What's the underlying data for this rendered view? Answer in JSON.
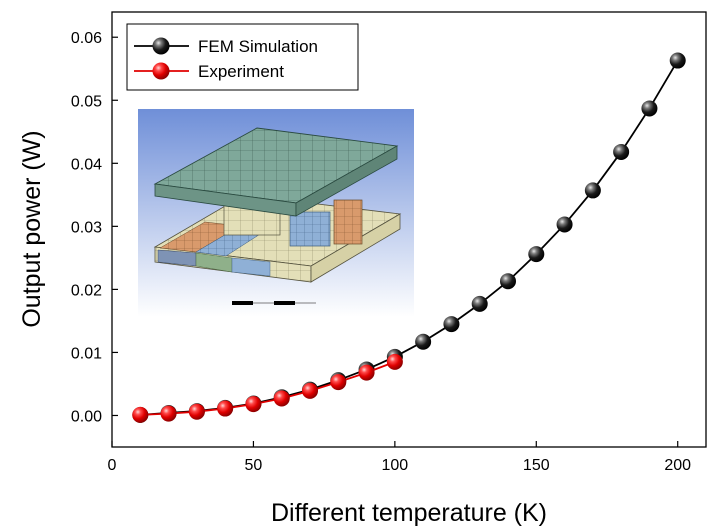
{
  "chart_data": {
    "type": "line",
    "xlabel": "Different temperature (K)",
    "ylabel": "Output power (W)",
    "xlim": [
      0,
      210
    ],
    "ylim": [
      -0.005,
      0.064
    ],
    "xticks": [
      0,
      50,
      100,
      150,
      200
    ],
    "yticks": [
      0.0,
      0.01,
      0.02,
      0.03,
      0.04,
      0.05,
      0.06
    ],
    "ytick_labels": [
      "0.00",
      "0.01",
      "0.02",
      "0.03",
      "0.04",
      "0.05",
      "0.06"
    ],
    "grid": false,
    "legend_position": "top-left",
    "series": [
      {
        "name": "FEM Simulation",
        "color": "#000000",
        "marker": "sphere",
        "x": [
          10,
          20,
          30,
          40,
          50,
          60,
          70,
          80,
          90,
          100,
          110,
          120,
          130,
          140,
          150,
          160,
          170,
          180,
          190,
          200
        ],
        "y": [
          0.0001,
          0.0004,
          0.0007,
          0.0012,
          0.0019,
          0.0029,
          0.0041,
          0.0056,
          0.0073,
          0.0093,
          0.0117,
          0.0145,
          0.0177,
          0.0213,
          0.0256,
          0.0303,
          0.0357,
          0.0418,
          0.0487,
          0.0563
        ]
      },
      {
        "name": "Experiment",
        "color": "#e00000",
        "marker": "sphere",
        "x": [
          10,
          20,
          30,
          40,
          50,
          60,
          70,
          80,
          90,
          100
        ],
        "y": [
          0.0001,
          0.0003,
          0.0006,
          0.0011,
          0.0018,
          0.0027,
          0.0039,
          0.0053,
          0.0068,
          0.0085
        ]
      }
    ],
    "inset": {
      "kind": "fem-mesh-rendering"
    }
  }
}
